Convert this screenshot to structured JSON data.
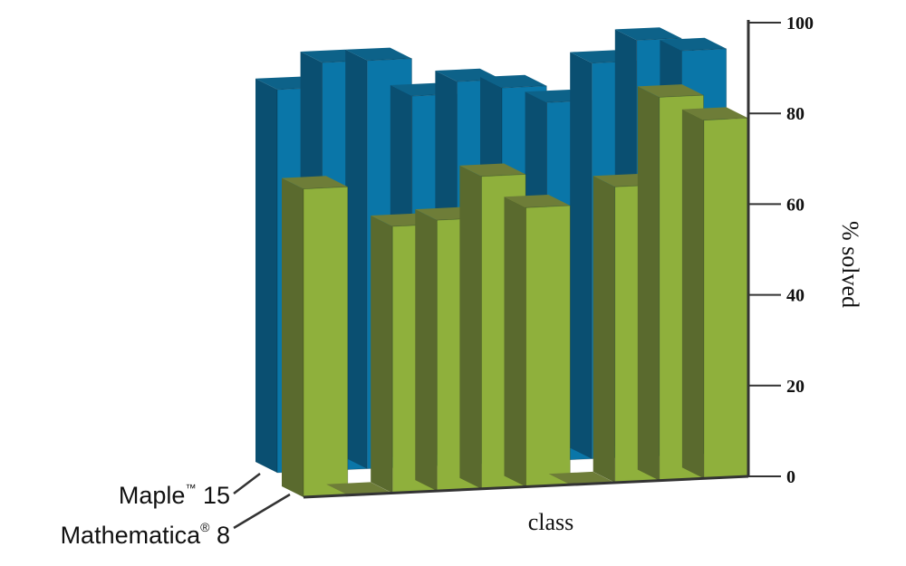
{
  "chart_data": {
    "type": "bar",
    "title": "",
    "xlabel": "class",
    "ylabel": "% solved",
    "ylim": [
      0,
      100
    ],
    "yticks": [
      "0",
      "20",
      "40",
      "60",
      "80",
      "100"
    ],
    "series": [
      {
        "name": "Maple™ 15",
        "name_main": "Maple",
        "name_mark": "™",
        "name_version": " 15",
        "color": "#0a76a8",
        "values": [
          92,
          98,
          98,
          89,
          92,
          90,
          86,
          95,
          100,
          97
        ]
      },
      {
        "name": "Mathematica® 8",
        "name_main": "Mathematica",
        "name_mark": "®",
        "name_version": " 8",
        "color": "#8fb03c",
        "values": [
          74,
          0,
          64,
          65,
          75,
          67,
          0,
          71,
          92,
          86
        ]
      }
    ],
    "colors": {
      "blue_front": "#0a76a8",
      "blue_top": "#0d6289",
      "blue_side": "#0a4f71",
      "green_front": "#8fb03c",
      "green_top": "#6e7d38",
      "green_side": "#5a6a2e",
      "axis": "#333333"
    }
  }
}
